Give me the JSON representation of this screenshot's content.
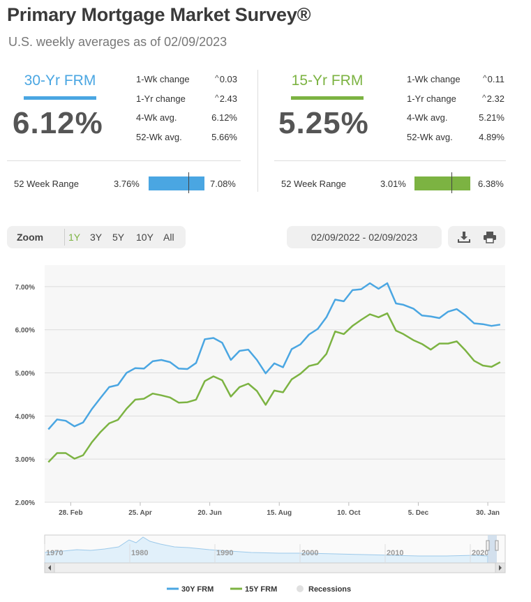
{
  "header": {
    "title": "Primary Mortgage Market Survey®",
    "subtitle": "U.S. weekly averages as of 02/09/2023"
  },
  "rates": [
    {
      "name": "30-Yr FRM",
      "value": "6.12%",
      "color": "#4aa6e2",
      "stats": [
        {
          "label": "1-Wk change",
          "value": "0.03",
          "caret": true
        },
        {
          "label": "1-Yr change",
          "value": "2.43",
          "caret": true
        },
        {
          "label": "4-Wk avg.",
          "value": "6.12%",
          "caret": false
        },
        {
          "label": "52-Wk avg.",
          "value": "5.66%",
          "caret": false
        }
      ],
      "range": {
        "label": "52 Week Range",
        "low": "3.76%",
        "high": "7.08%",
        "current": 0.71
      }
    },
    {
      "name": "15-Yr FRM",
      "value": "5.25%",
      "color": "#7cb342",
      "stats": [
        {
          "label": "1-Wk change",
          "value": "0.11",
          "caret": true
        },
        {
          "label": "1-Yr change",
          "value": "2.32",
          "caret": true
        },
        {
          "label": "4-Wk avg.",
          "value": "5.21%",
          "caret": false
        },
        {
          "label": "52-Wk avg.",
          "value": "4.89%",
          "caret": false
        }
      ],
      "range": {
        "label": "52 Week Range",
        "low": "3.01%",
        "high": "6.38%",
        "current": 0.66
      }
    }
  ],
  "controls": {
    "zoom_label": "Zoom",
    "zoom_options": [
      "1Y",
      "3Y",
      "5Y",
      "10Y",
      "All"
    ],
    "zoom_active": "1Y",
    "date_range": "02/09/2022 - 02/09/2023",
    "download_icon": "download-icon",
    "print_icon": "print-icon"
  },
  "chart_data": {
    "type": "line",
    "ylim": [
      2,
      7.5
    ],
    "yticks": [
      2,
      3,
      4,
      5,
      6,
      7
    ],
    "ytick_labels": [
      "2.00%",
      "3.00%",
      "4.00%",
      "5.00%",
      "6.00%",
      "7.00%"
    ],
    "xlim": [
      "2022-02-07",
      "2023-02-13"
    ],
    "xticks": [
      {
        "date": "2022-02-28",
        "label": "28. Feb"
      },
      {
        "date": "2022-04-25",
        "label": "25. Apr"
      },
      {
        "date": "2022-06-20",
        "label": "20. Jun"
      },
      {
        "date": "2022-08-15",
        "label": "15. Aug"
      },
      {
        "date": "2022-10-10",
        "label": "10. Oct"
      },
      {
        "date": "2022-12-05",
        "label": "5. Dec"
      },
      {
        "date": "2023-01-30",
        "label": "30. Jan"
      }
    ],
    "x": [
      "2022-02-10",
      "2022-02-17",
      "2022-02-24",
      "2022-03-03",
      "2022-03-10",
      "2022-03-17",
      "2022-03-24",
      "2022-03-31",
      "2022-04-07",
      "2022-04-14",
      "2022-04-21",
      "2022-04-28",
      "2022-05-05",
      "2022-05-12",
      "2022-05-19",
      "2022-05-26",
      "2022-06-02",
      "2022-06-09",
      "2022-06-16",
      "2022-06-23",
      "2022-06-30",
      "2022-07-07",
      "2022-07-14",
      "2022-07-21",
      "2022-07-28",
      "2022-08-04",
      "2022-08-11",
      "2022-08-18",
      "2022-08-25",
      "2022-09-01",
      "2022-09-08",
      "2022-09-15",
      "2022-09-22",
      "2022-09-29",
      "2022-10-06",
      "2022-10-13",
      "2022-10-20",
      "2022-10-27",
      "2022-11-03",
      "2022-11-10",
      "2022-11-17",
      "2022-11-23",
      "2022-12-01",
      "2022-12-08",
      "2022-12-15",
      "2022-12-22",
      "2022-12-29",
      "2023-01-05",
      "2023-01-12",
      "2023-01-19",
      "2023-01-26",
      "2023-02-02",
      "2023-02-09"
    ],
    "series": [
      {
        "name": "30Y FRM",
        "color": "#4aa6e2",
        "values": [
          3.69,
          3.92,
          3.89,
          3.76,
          3.85,
          4.16,
          4.42,
          4.67,
          4.72,
          5.0,
          5.11,
          5.1,
          5.27,
          5.3,
          5.25,
          5.1,
          5.09,
          5.23,
          5.78,
          5.81,
          5.7,
          5.3,
          5.51,
          5.54,
          5.3,
          4.99,
          5.22,
          5.13,
          5.55,
          5.66,
          5.89,
          6.02,
          6.29,
          6.7,
          6.66,
          6.92,
          6.94,
          7.08,
          6.95,
          7.08,
          6.61,
          6.58,
          6.49,
          6.33,
          6.31,
          6.27,
          6.42,
          6.48,
          6.33,
          6.15,
          6.13,
          6.09,
          6.12
        ]
      },
      {
        "name": "15Y FRM",
        "color": "#7cb342",
        "values": [
          2.93,
          3.14,
          3.14,
          3.01,
          3.09,
          3.39,
          3.63,
          3.83,
          3.91,
          4.17,
          4.38,
          4.4,
          4.52,
          4.48,
          4.43,
          4.31,
          4.32,
          4.38,
          4.81,
          4.92,
          4.83,
          4.45,
          4.67,
          4.75,
          4.58,
          4.26,
          4.59,
          4.55,
          4.85,
          4.98,
          5.16,
          5.21,
          5.44,
          5.96,
          5.9,
          6.09,
          6.23,
          6.36,
          6.29,
          6.38,
          5.98,
          5.9,
          5.76,
          5.67,
          5.54,
          5.68,
          5.68,
          5.73,
          5.52,
          5.28,
          5.17,
          5.14,
          5.25
        ]
      }
    ],
    "navigator": {
      "labels": [
        "1970",
        "1980",
        "1990",
        "2000",
        "2010",
        "2020"
      ]
    },
    "legend": [
      {
        "name": "30Y FRM",
        "color": "#4aa6e2"
      },
      {
        "name": "15Y FRM",
        "color": "#7cb342"
      },
      {
        "name": "Recessions",
        "color": "#e0e0e0"
      }
    ]
  }
}
